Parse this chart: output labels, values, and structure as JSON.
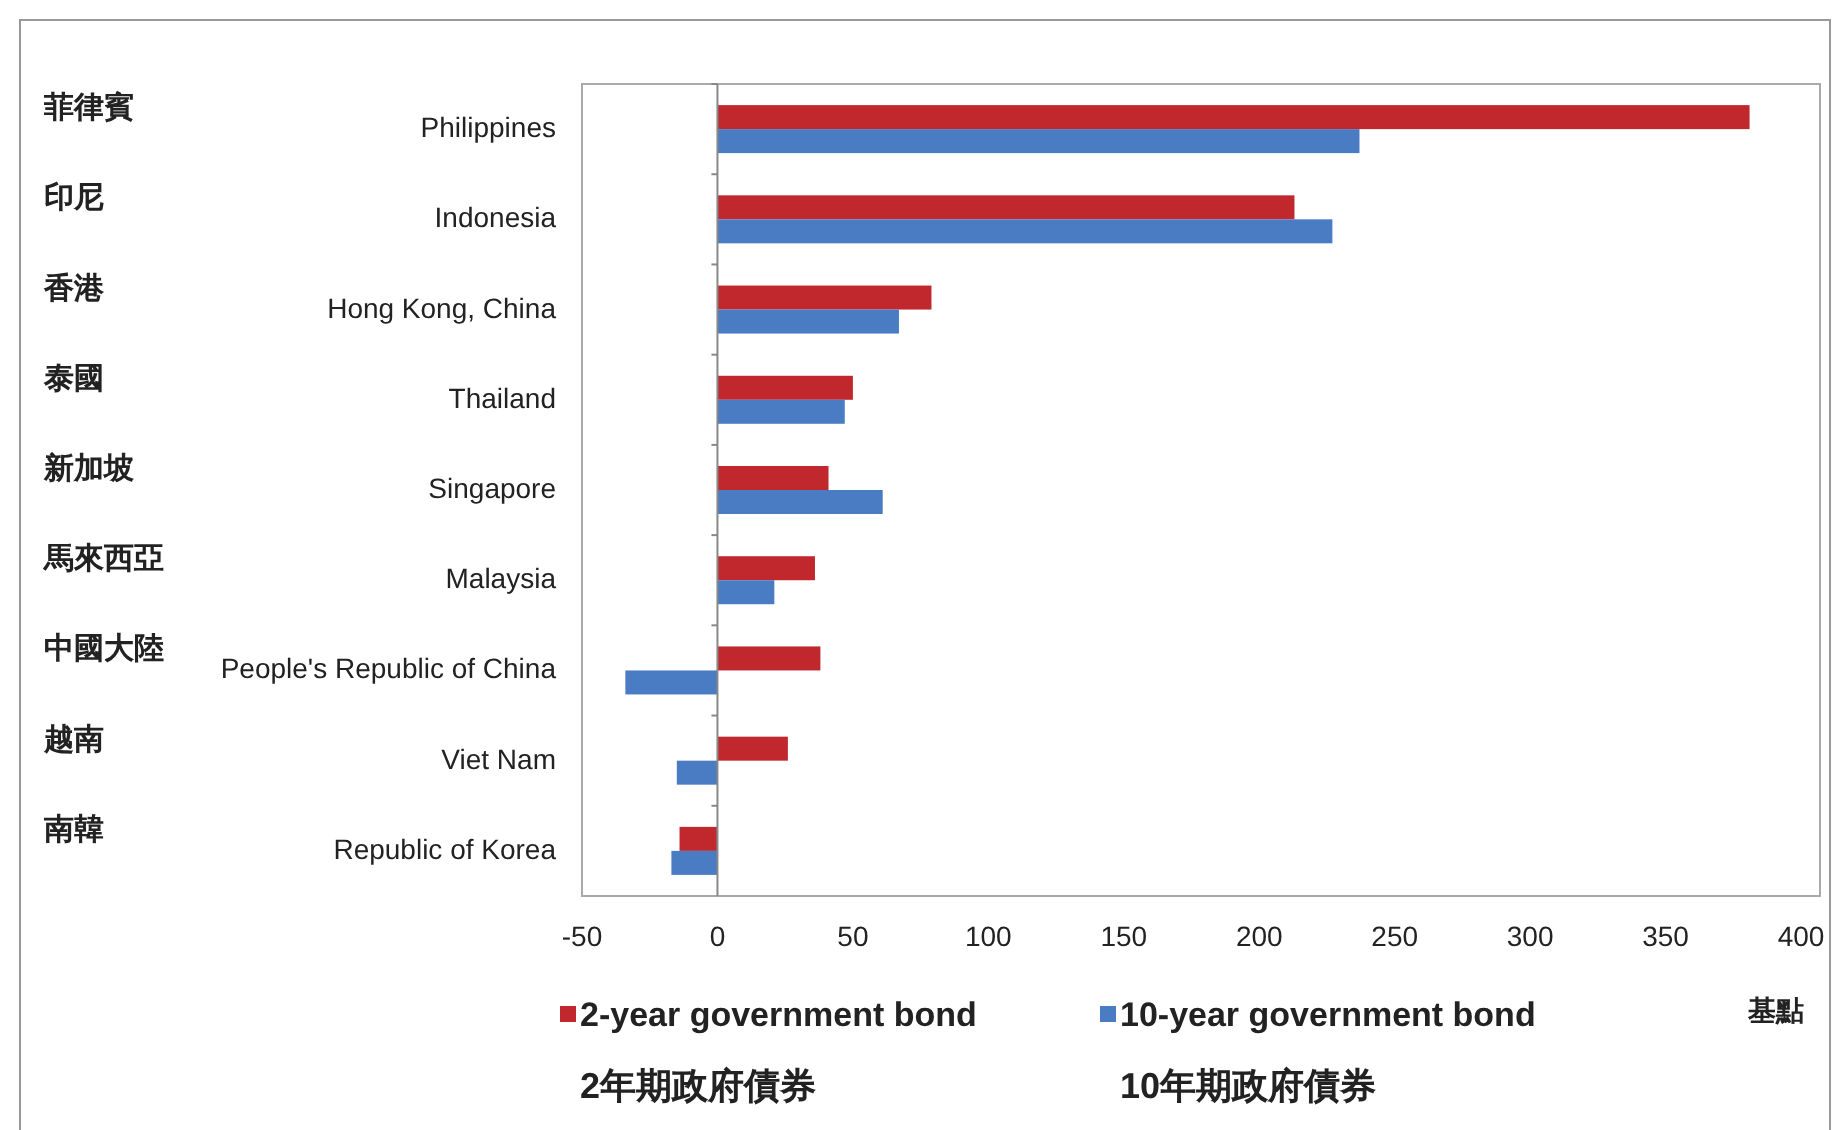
{
  "chart_data": {
    "type": "bar",
    "orientation": "horizontal",
    "categories": [
      "菲律賓\nPhilippines",
      "印尼\nIndonesia",
      "香港\nHong Kong, China",
      "泰國\nThailand",
      "新加坡\nSingapore",
      "馬來西亞\nMalaysia",
      "中國大陸\nPeople's Republic of China",
      "越南\nViet Nam",
      "南韓\nRepublic of Korea"
    ],
    "series": [
      {
        "name": "2-year government bond\n2年期政府債券",
        "color": "#c0282e",
        "values": [
          381,
          213,
          79,
          50,
          41,
          36,
          38,
          26,
          -14
        ]
      },
      {
        "name": "10-year government bond\n10年期政府債券",
        "color": "#4a7cc4",
        "values": [
          237,
          227,
          67,
          47,
          61,
          21,
          -34,
          -15,
          -17
        ]
      }
    ],
    "xlim": [
      -50,
      407
    ],
    "xticks": [
      -50,
      0,
      50,
      100,
      150,
      200,
      250,
      300,
      350,
      400
    ],
    "xlabel": "基點",
    "legend": "bottom"
  }
}
